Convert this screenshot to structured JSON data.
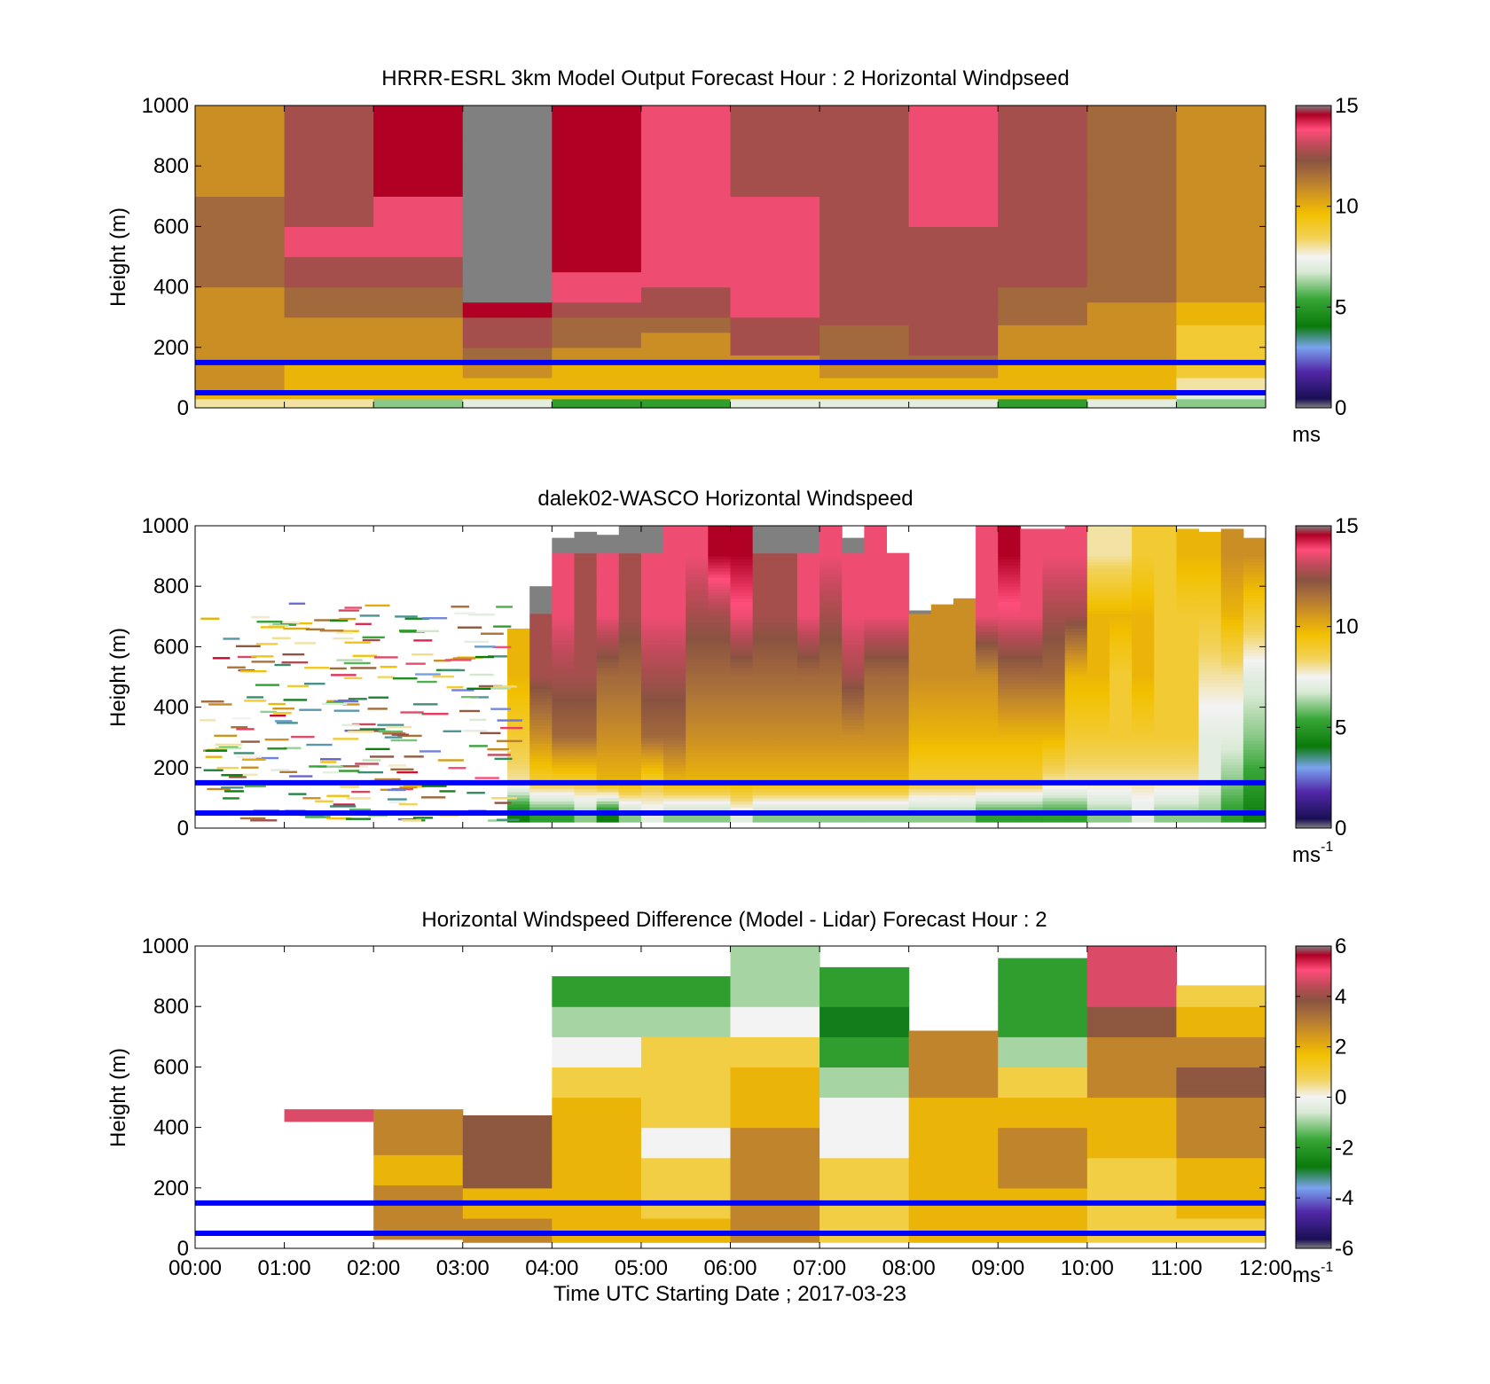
{
  "figure": {
    "xticks": [
      "00:00",
      "01:00",
      "02:00",
      "03:00",
      "04:00",
      "05:00",
      "06:00",
      "07:00",
      "08:00",
      "09:00",
      "10:00",
      "11:00",
      "12:00"
    ],
    "xlabel": "Time UTC  Starting Date ; 2017-03-23",
    "ylabel": "Height (m)",
    "yticks": [
      "0",
      "200",
      "400",
      "600",
      "800",
      "1000"
    ]
  },
  "chart_data": [
    {
      "type": "heatmap",
      "title": "HRRR-ESRL 3km Model Output   Forecast Hour : 2 Horizontal Windpseed",
      "ylabel": "Height (m)",
      "xlim": [
        "00:00",
        "12:00"
      ],
      "ylim": [
        0,
        1000
      ],
      "colorbar": {
        "range": [
          0,
          15
        ],
        "ticks": [
          "0",
          "5",
          "10",
          "15"
        ],
        "unit_base": "ms",
        "unit_exp": ""
      },
      "reference_lines_m": [
        50,
        150
      ],
      "reference_line_color": "#0000ff",
      "grid": false,
      "x_hours": [
        0,
        1,
        2,
        3,
        4,
        5,
        6,
        7,
        8,
        9,
        10,
        11
      ],
      "y_levels_m": [
        15,
        30,
        50,
        75,
        100,
        125,
        150,
        175,
        200,
        225,
        250,
        275,
        300,
        325,
        350,
        400,
        450,
        500,
        550,
        600,
        700,
        800,
        900,
        1000
      ],
      "values_ms": [
        [
          8,
          8,
          10,
          11,
          11,
          11,
          11,
          11,
          11,
          11,
          11,
          11,
          11,
          11,
          11,
          11,
          12,
          12,
          12,
          12,
          12,
          11,
          11,
          11
        ],
        [
          8,
          8,
          10,
          10,
          10,
          10,
          10,
          11,
          11,
          11,
          11,
          11,
          11,
          12,
          12,
          12,
          13,
          13,
          14,
          14,
          13,
          13,
          13,
          13
        ],
        [
          6,
          6,
          10,
          10,
          10,
          10,
          10,
          11,
          11,
          11,
          11,
          11,
          11,
          12,
          12,
          12,
          13,
          13,
          14,
          14,
          14,
          15,
          15,
          15
        ],
        [
          7,
          7,
          10,
          10,
          10,
          11,
          11,
          12,
          12,
          13,
          13,
          13,
          13,
          15,
          15,
          null,
          null,
          null,
          null,
          null,
          null,
          null,
          null,
          null
        ],
        [
          5,
          5,
          10,
          10,
          10,
          10,
          10,
          11,
          11,
          12,
          12,
          12,
          12,
          13,
          13,
          14,
          14,
          15,
          15,
          15,
          15,
          15,
          15,
          15
        ],
        [
          5,
          5,
          10,
          10,
          10,
          10,
          10,
          11,
          11,
          11,
          11,
          12,
          12,
          13,
          13,
          13,
          14,
          14,
          14,
          14,
          14,
          14,
          14,
          14
        ],
        [
          7,
          7,
          10,
          10,
          10,
          10,
          10,
          11,
          13,
          13,
          13,
          13,
          13,
          14,
          14,
          14,
          14,
          14,
          14,
          14,
          14,
          13,
          13,
          13
        ],
        [
          7,
          7,
          10,
          10,
          10,
          11,
          11,
          12,
          12,
          12,
          12,
          12,
          13,
          13,
          13,
          13,
          13,
          13,
          13,
          13,
          13,
          13,
          13,
          13
        ],
        [
          7,
          7,
          10,
          10,
          10,
          11,
          11,
          12,
          13,
          13,
          13,
          13,
          13,
          13,
          13,
          13,
          13,
          13,
          13,
          13,
          14,
          14,
          14,
          14
        ],
        [
          5,
          5,
          10,
          10,
          10,
          10,
          10,
          11,
          11,
          11,
          11,
          11,
          12,
          12,
          12,
          12,
          13,
          13,
          13,
          13,
          13,
          13,
          13,
          13
        ],
        [
          7,
          7,
          10,
          10,
          10,
          10,
          10,
          11,
          11,
          11,
          11,
          11,
          11,
          11,
          11,
          12,
          12,
          12,
          12,
          12,
          12,
          12,
          12,
          12
        ],
        [
          6,
          6,
          7,
          8,
          8,
          9,
          9,
          9,
          9,
          9,
          9,
          9,
          10,
          10,
          10,
          11,
          11,
          11,
          11,
          11,
          11,
          11,
          11,
          11
        ]
      ]
    },
    {
      "type": "heatmap",
      "title": "dalek02-WASCO  Horizontal Windspeed",
      "ylabel": "Height (m)",
      "xlim": [
        "00:00",
        "12:00"
      ],
      "ylim": [
        0,
        1000
      ],
      "colorbar": {
        "range": [
          0,
          15
        ],
        "ticks": [
          "0",
          "5",
          "10",
          "15"
        ],
        "unit_base": "ms",
        "unit_exp": "-1"
      },
      "reference_lines_m": [
        50,
        150
      ],
      "reference_line_color": "#0000ff",
      "grid": false,
      "profile_hours": [
        3.5,
        3.75,
        4,
        4.25,
        4.5,
        4.75,
        5,
        5.25,
        5.5,
        5.75,
        6,
        6.25,
        6.5,
        6.75,
        7,
        7.25,
        7.5,
        7.75,
        8,
        8.25,
        8.5,
        8.75,
        9,
        9.25,
        9.5,
        9.75,
        10,
        10.25,
        10.5,
        10.75,
        11,
        11.25,
        11.5,
        11.75
      ],
      "profile_max_height_m": [
        660,
        800,
        960,
        980,
        970,
        1000,
        1000,
        1000,
        1000,
        1000,
        1000,
        1000,
        1000,
        1000,
        1000,
        960,
        1000,
        910,
        720,
        740,
        760,
        1000,
        1000,
        990,
        990,
        1000,
        1000,
        1000,
        1000,
        1000,
        990,
        980,
        990,
        960
      ],
      "profile_levels_m": [
        40,
        150,
        300,
        500,
        700,
        900
      ],
      "profile_values_ms": [
        [
          4,
          8,
          9,
          10,
          null,
          null
        ],
        [
          5,
          9,
          11,
          13,
          null,
          null
        ],
        [
          5,
          9,
          12,
          13,
          14,
          null
        ],
        [
          6,
          9,
          12,
          13,
          13,
          null
        ],
        [
          4,
          10,
          11,
          12,
          14,
          null
        ],
        [
          6,
          10,
          11,
          12,
          13,
          null
        ],
        [
          7,
          9,
          12,
          13,
          14,
          null
        ],
        [
          6,
          10,
          12,
          13,
          14,
          14
        ],
        [
          6,
          10,
          11,
          12,
          13,
          14
        ],
        [
          6,
          10,
          11,
          12,
          13,
          15
        ],
        [
          7,
          10,
          11,
          12,
          14,
          15
        ],
        [
          6,
          10,
          11,
          12,
          13,
          null
        ],
        [
          6,
          10,
          11,
          12,
          13,
          null
        ],
        [
          6,
          10,
          11,
          12,
          14,
          null
        ],
        [
          6,
          10,
          11,
          12,
          13,
          14
        ],
        [
          6,
          10,
          11,
          13,
          14,
          null
        ],
        [
          6,
          10,
          11,
          12,
          14,
          14
        ],
        [
          6,
          10,
          11,
          12,
          14,
          null
        ],
        [
          6,
          9,
          10,
          11,
          null,
          null
        ],
        [
          6,
          9,
          10,
          11,
          11,
          null
        ],
        [
          6,
          9,
          10,
          11,
          11,
          null
        ],
        [
          5,
          9,
          10,
          11,
          14,
          14
        ],
        [
          5,
          9,
          10,
          12,
          14,
          15
        ],
        [
          5,
          9,
          10,
          12,
          14,
          14
        ],
        [
          5,
          8,
          10,
          12,
          13,
          14
        ],
        [
          5,
          8,
          9,
          10,
          13,
          14
        ],
        [
          6,
          8,
          9,
          10,
          10,
          8
        ],
        [
          6,
          8,
          9,
          9,
          10,
          8
        ],
        [
          7,
          8,
          9,
          10,
          10,
          9
        ],
        [
          6,
          8,
          9,
          9,
          9,
          9
        ],
        [
          6,
          8,
          9,
          9,
          9,
          10
        ],
        [
          6,
          7,
          7,
          8,
          9,
          10
        ],
        [
          5,
          6,
          7,
          8,
          10,
          11
        ],
        [
          4,
          5,
          6,
          7,
          9,
          11
        ]
      ],
      "sparse_period": [
        "00:00",
        "03:30"
      ],
      "sparse_period_height_range_m": [
        0,
        740
      ]
    },
    {
      "type": "heatmap",
      "title": "Horizontal Windspeed Difference (Model - Lidar) Forecast Hour : 2",
      "ylabel": "Height (m)",
      "xlabel": "Time UTC  Starting Date ; 2017-03-23",
      "xlim": [
        "00:00",
        "12:00"
      ],
      "ylim": [
        0,
        1000
      ],
      "colorbar": {
        "range": [
          -6,
          6
        ],
        "ticks": [
          "-6",
          "-4",
          "-2",
          "0",
          "2",
          "4",
          "6"
        ],
        "unit_base": "ms",
        "unit_exp": "-1"
      },
      "reference_lines_m": [
        50,
        150
      ],
      "reference_line_color": "#0000ff",
      "grid": false,
      "x_hours": [
        1,
        2,
        3,
        4,
        5,
        6,
        7,
        8,
        9,
        10,
        11
      ],
      "column_top_m": [
        460,
        460,
        440,
        900,
        900,
        1000,
        930,
        720,
        960,
        1000,
        870
      ],
      "column_bottom_m": [
        420,
        30,
        20,
        20,
        20,
        20,
        20,
        20,
        20,
        20,
        20
      ],
      "y_levels_m": [
        100,
        200,
        300,
        400,
        500,
        600,
        700,
        800,
        900,
        1000
      ],
      "values_ms": [
        [
          null,
          null,
          null,
          5,
          null,
          null,
          null,
          null,
          null,
          null
        ],
        [
          null,
          3,
          2,
          3,
          null,
          null,
          null,
          null,
          null,
          null
        ],
        [
          3,
          2,
          4,
          4,
          null,
          null,
          null,
          null,
          null,
          null
        ],
        [
          2,
          2,
          2,
          2,
          2,
          1,
          0,
          -1,
          -2,
          null
        ],
        [
          2,
          1,
          1,
          0,
          1,
          1,
          1,
          -1,
          -2,
          null
        ],
        [
          3,
          3,
          3,
          3,
          2,
          2,
          1,
          0,
          -1,
          -1
        ],
        [
          1,
          1,
          1,
          0,
          0,
          -1,
          -2,
          -3,
          -2,
          null
        ],
        [
          2,
          2,
          2,
          2,
          2,
          3,
          3,
          null,
          null,
          null
        ],
        [
          2,
          2,
          3,
          3,
          2,
          1,
          -1,
          -2,
          -2,
          null
        ],
        [
          1,
          1,
          1,
          2,
          2,
          3,
          3,
          4,
          5,
          5
        ],
        [
          1,
          2,
          2,
          3,
          3,
          4,
          3,
          2,
          1,
          null
        ]
      ]
    }
  ]
}
